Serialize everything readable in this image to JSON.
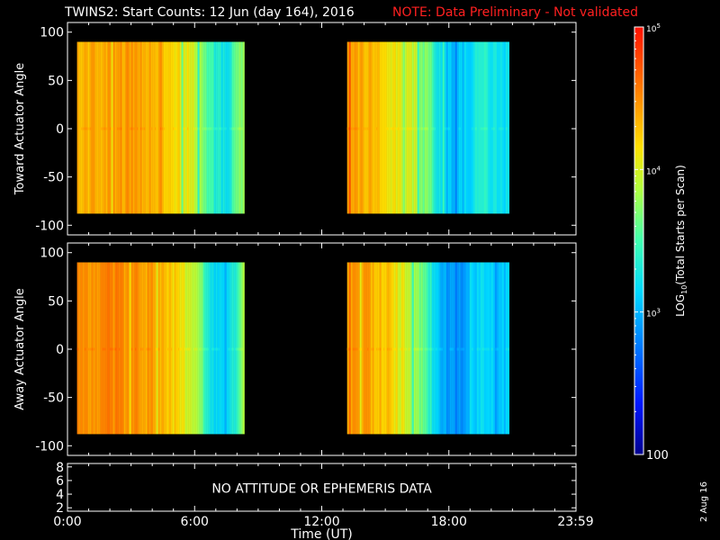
{
  "header": {
    "title": "TWINS2: Start Counts: 12 Jun (day 164), 2016",
    "note": "NOTE: Data Preliminary - Not validated"
  },
  "date_stamp": "2 Aug 16",
  "colors": {
    "background": "#000000",
    "foreground": "#ffffff",
    "note": "#ff2020",
    "no_data": "#000000"
  },
  "chart_data": [
    {
      "type": "heatmap",
      "panel": "top",
      "ylabel": "Toward Actuator Angle",
      "ylim": [
        -110,
        110
      ],
      "yticks": [
        "100",
        "50",
        "0",
        "-50",
        "-100"
      ],
      "yticks_values": [
        100,
        50,
        0,
        -50,
        -100
      ],
      "xlim_hours": [
        0,
        24
      ],
      "data_extent_y": [
        -88,
        90
      ],
      "data_intervals_hours": [
        [
          0.45,
          8.35
        ],
        [
          13.2,
          20.8
        ]
      ],
      "profile": [
        [
          0.45,
          4.3
        ],
        [
          1.0,
          4.35
        ],
        [
          2.0,
          4.4
        ],
        [
          3.0,
          4.4
        ],
        [
          4.0,
          4.35
        ],
        [
          5.0,
          4.2
        ],
        [
          6.0,
          3.95
        ],
        [
          6.5,
          3.6
        ],
        [
          7.0,
          3.3
        ],
        [
          7.5,
          3.25
        ],
        [
          8.0,
          3.6
        ],
        [
          8.35,
          3.9
        ],
        [
          13.2,
          4.4
        ],
        [
          14.0,
          4.35
        ],
        [
          15.0,
          4.2
        ],
        [
          16.0,
          4.0
        ],
        [
          16.8,
          3.8
        ],
        [
          17.5,
          3.25
        ],
        [
          18.0,
          3.05
        ],
        [
          18.5,
          3.05
        ],
        [
          19.0,
          3.2
        ],
        [
          19.5,
          3.35
        ],
        [
          20.0,
          3.25
        ],
        [
          20.8,
          3.15
        ]
      ]
    },
    {
      "type": "heatmap",
      "panel": "middle",
      "ylabel": "Away Actuator Angle",
      "ylim": [
        -110,
        110
      ],
      "yticks": [
        "100",
        "50",
        "0",
        "-50",
        "-100"
      ],
      "yticks_values": [
        100,
        50,
        0,
        -50,
        -100
      ],
      "xlim_hours": [
        0,
        24
      ],
      "xticks": [
        "0:00",
        "6:00",
        "12:00",
        "18:00",
        "23:59"
      ],
      "xticks_hours": [
        0,
        6,
        12,
        18,
        23.98
      ],
      "data_extent_y": [
        -88,
        90
      ],
      "data_intervals_hours": [
        [
          0.45,
          8.35
        ],
        [
          13.2,
          20.8
        ]
      ],
      "profile": [
        [
          0.45,
          4.45
        ],
        [
          1.0,
          4.5
        ],
        [
          2.0,
          4.5
        ],
        [
          3.0,
          4.45
        ],
        [
          4.0,
          4.4
        ],
        [
          5.0,
          4.2
        ],
        [
          6.0,
          3.9
        ],
        [
          6.5,
          3.45
        ],
        [
          7.0,
          3.1
        ],
        [
          7.5,
          3.05
        ],
        [
          8.0,
          3.5
        ],
        [
          8.35,
          3.9
        ],
        [
          13.2,
          4.45
        ],
        [
          14.0,
          4.4
        ],
        [
          15.0,
          4.25
        ],
        [
          16.0,
          3.95
        ],
        [
          16.8,
          3.6
        ],
        [
          17.5,
          3.05
        ],
        [
          18.0,
          2.85
        ],
        [
          18.5,
          2.85
        ],
        [
          19.0,
          3.05
        ],
        [
          19.5,
          3.2
        ],
        [
          20.0,
          3.1
        ],
        [
          20.8,
          3.05
        ]
      ]
    },
    {
      "type": "line",
      "panel": "bottom",
      "ylim": [
        1.5,
        8.5
      ],
      "yticks": [
        "8",
        "6",
        "4",
        "2"
      ],
      "yticks_values": [
        8,
        6,
        4,
        2
      ],
      "xticks": [
        "0:00",
        "6:00",
        "12:00",
        "18:00",
        "23:59"
      ],
      "xticks_hours": [
        0,
        6,
        12,
        18,
        23.98
      ],
      "xlabel": "Time (UT)",
      "message": "NO ATTITUDE OR EPHEMERIS DATA"
    }
  ],
  "colorbar": {
    "scale": "log",
    "range": [
      2,
      5
    ],
    "colormap": "rainbow",
    "ticks": [
      {
        "value": 5,
        "base": "10",
        "exp": "5"
      },
      {
        "value": 4,
        "base": "10",
        "exp": "4"
      },
      {
        "value": 3,
        "base": "10",
        "exp": "3"
      },
      {
        "value": 2,
        "label": "100"
      }
    ],
    "label": {
      "pre": "LOG",
      "sub": "10",
      "post": "(Total Starts per Scan)"
    }
  }
}
